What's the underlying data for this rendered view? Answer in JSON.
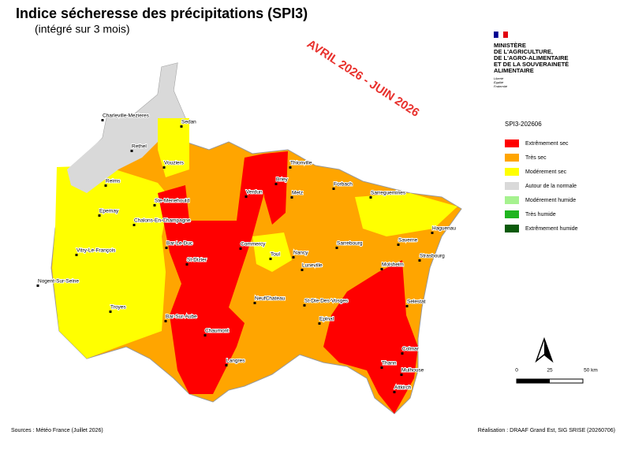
{
  "title": "Indice sécheresse des précipitations (SPI3)",
  "subtitle": "(intégré sur 3 mois)",
  "period": "AVRIL 2026 - JUIN 2026",
  "ministry": {
    "name": [
      "MINISTÈRE",
      "DE L'AGRICULTURE,",
      "DE L'AGRO-ALIMENTAIRE",
      "ET DE LA SOUVERAINETÉ",
      "ALIMENTAIRE"
    ],
    "motto": [
      "Liberté",
      "Égalité",
      "Fraternité"
    ]
  },
  "legend": {
    "title": "SPI3-202606",
    "items": [
      {
        "label": "Extrêmement sec",
        "color": "#ff0000"
      },
      {
        "label": "Très sec",
        "color": "#ffa500"
      },
      {
        "label": "Modérement sec",
        "color": "#ffff00"
      },
      {
        "label": "Autour de la normale",
        "color": "#d9d9d9"
      },
      {
        "label": "Modérement humide",
        "color": "#a6f28f"
      },
      {
        "label": "Très humide",
        "color": "#1fb41f"
      },
      {
        "label": "Extrêmement humide",
        "color": "#0a5a0a"
      }
    ]
  },
  "cities": [
    "Charleville-Mezieres",
    "Sedan",
    "Rethel",
    "Vouziers",
    "Thionville",
    "Forbach",
    "Sarreguemines",
    "Reims",
    "Briey",
    "Metz",
    "Verdun",
    "Ste-Menehould",
    "Epernay",
    "Chalons-En-Champagne",
    "Haguenau",
    "Saverne",
    "Bar-Le-Duc",
    "Commercy",
    "Sarrebourg",
    "Toul",
    "Nancy",
    "Vitry-Le-François",
    "St-Dizier",
    "Strasbourg",
    "Luneville",
    "Molsheim",
    "Nogent-Sur-Seine",
    "NeufChateau",
    "St-Die-Des-Vosges",
    "Selestat",
    "Troyes",
    "Bar-Sur-Aube",
    "Epinal",
    "Chaumont",
    "Colmar",
    "Langres",
    "Thann",
    "Mulhouse",
    "Altkirch"
  ],
  "scale": [
    "0",
    "25",
    "50 km"
  ],
  "sources": "Sources : Météo France (Juillet 2026)",
  "credit": "Réalisation : DRAAF Grand Est, SIG SRISE (20260706)"
}
